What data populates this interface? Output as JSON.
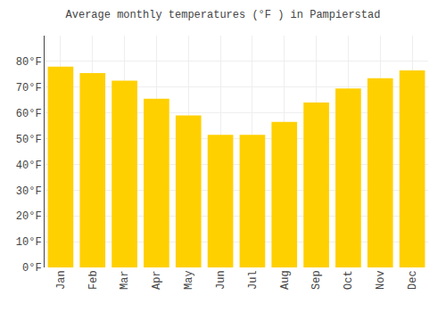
{
  "chart_data": {
    "type": "bar",
    "title": "Average monthly temperatures (°F ) in Pampierstad",
    "categories": [
      "Jan",
      "Feb",
      "Mar",
      "Apr",
      "May",
      "Jun",
      "Jul",
      "Aug",
      "Sep",
      "Oct",
      "Nov",
      "Dec"
    ],
    "values": [
      78,
      75.5,
      72.5,
      65.5,
      59,
      51.5,
      51.5,
      56.5,
      64,
      69.5,
      73.5,
      76.5
    ],
    "color": "#FFD000",
    "ylim": [
      0,
      90
    ],
    "yticks": [
      {
        "value": 0,
        "label": "0°F"
      },
      {
        "value": 10,
        "label": "10°F"
      },
      {
        "value": 20,
        "label": "20°F"
      },
      {
        "value": 30,
        "label": "30°F"
      },
      {
        "value": 40,
        "label": "40°F"
      },
      {
        "value": 50,
        "label": "50°F"
      },
      {
        "value": 60,
        "label": "60°F"
      },
      {
        "value": 70,
        "label": "70°F"
      },
      {
        "value": 80,
        "label": "80°F"
      }
    ],
    "grid": true
  }
}
